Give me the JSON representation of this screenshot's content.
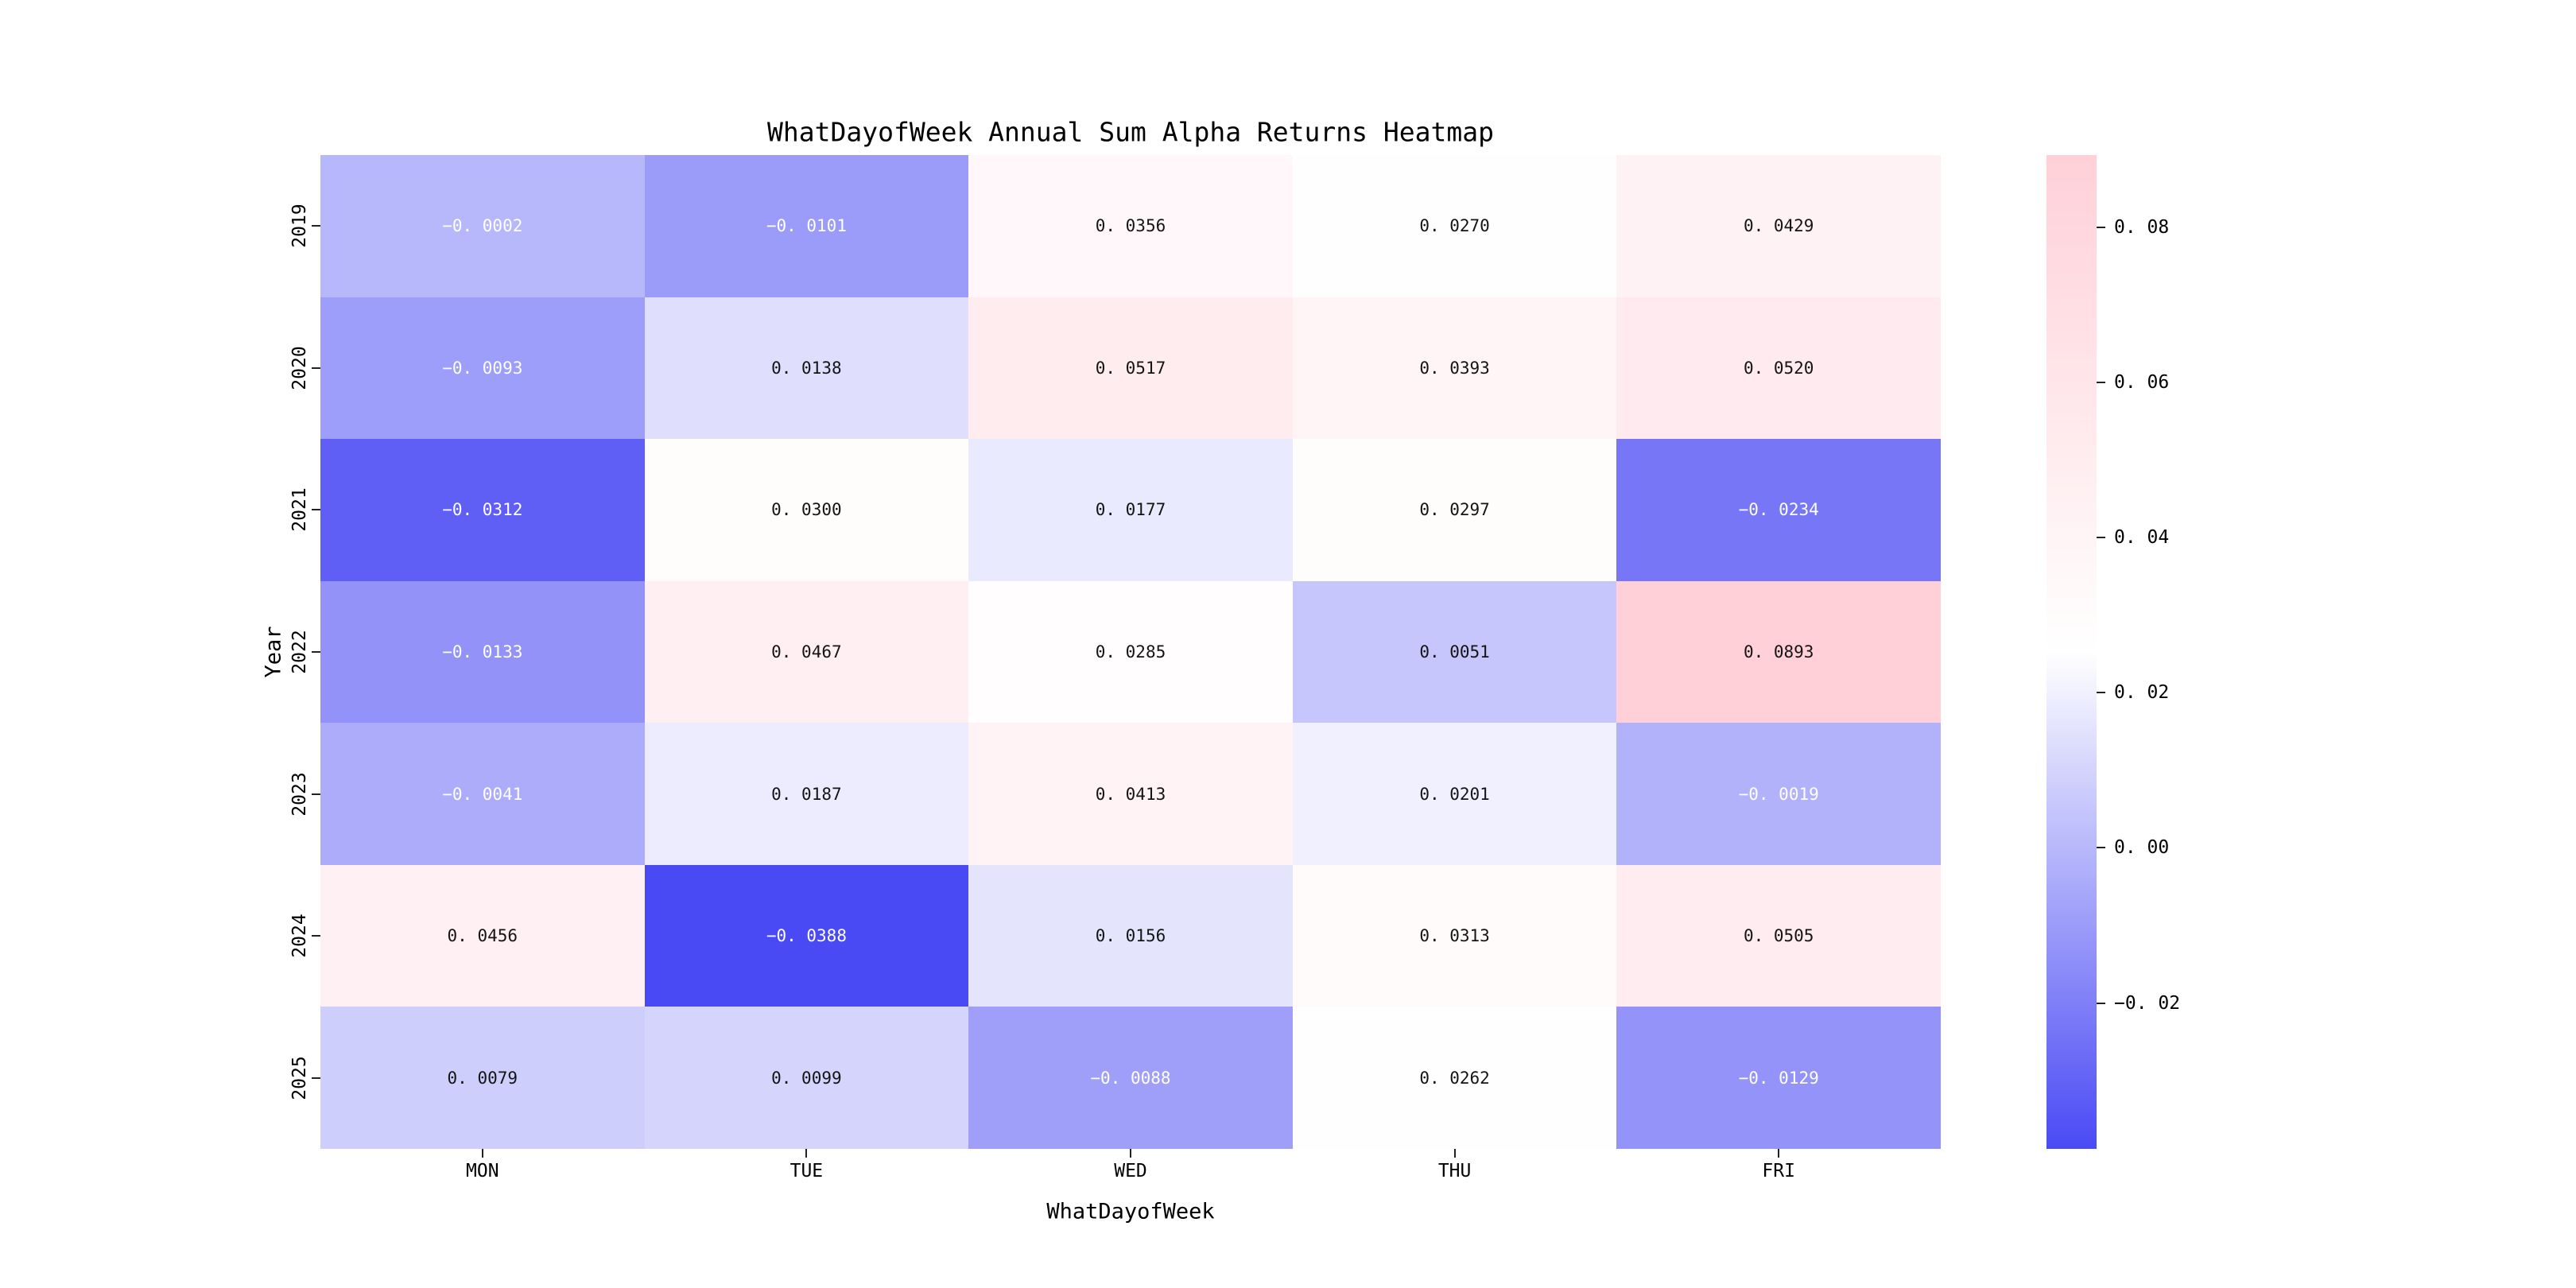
{
  "figure": {
    "background": "#ffffff"
  },
  "chart_data": {
    "type": "heatmap",
    "title": "WhatDayofWeek Annual Sum Alpha Returns Heatmap",
    "xlabel": "WhatDayofWeek",
    "ylabel": "Year",
    "columns": [
      "MON",
      "TUE",
      "WED",
      "THU",
      "FRI"
    ],
    "rows": [
      "2019",
      "2020",
      "2021",
      "2022",
      "2023",
      "2024",
      "2025"
    ],
    "values": [
      [
        -0.0002,
        -0.0101,
        0.0356,
        0.027,
        0.0429
      ],
      [
        -0.0093,
        0.0138,
        0.0517,
        0.0393,
        0.052
      ],
      [
        -0.0312,
        0.03,
        0.0177,
        0.0297,
        -0.0234
      ],
      [
        -0.0133,
        0.0467,
        0.0285,
        0.0051,
        0.0893
      ],
      [
        -0.0041,
        0.0187,
        0.0413,
        0.0201,
        -0.0019
      ],
      [
        0.0456,
        -0.0388,
        0.0156,
        0.0313,
        0.0505
      ],
      [
        0.0079,
        0.0099,
        -0.0088,
        0.0262,
        -0.0129
      ]
    ],
    "vmin": -0.0388,
    "vmax": 0.0893,
    "cell_value_decimals": 4,
    "annotations_on": true,
    "grid": false,
    "colorbar": {
      "position": "right",
      "ticks": [
        0.08,
        0.06,
        0.04,
        0.02,
        0.0,
        -0.02
      ],
      "tick_decimals": 2
    },
    "colors": {
      "low": "#4a4af5",
      "mid": "#ffffff",
      "high": "#ffd0d8",
      "text_on_dark": "#ffffff",
      "text_on_light": "#141414",
      "axis_text": "#000000"
    }
  }
}
